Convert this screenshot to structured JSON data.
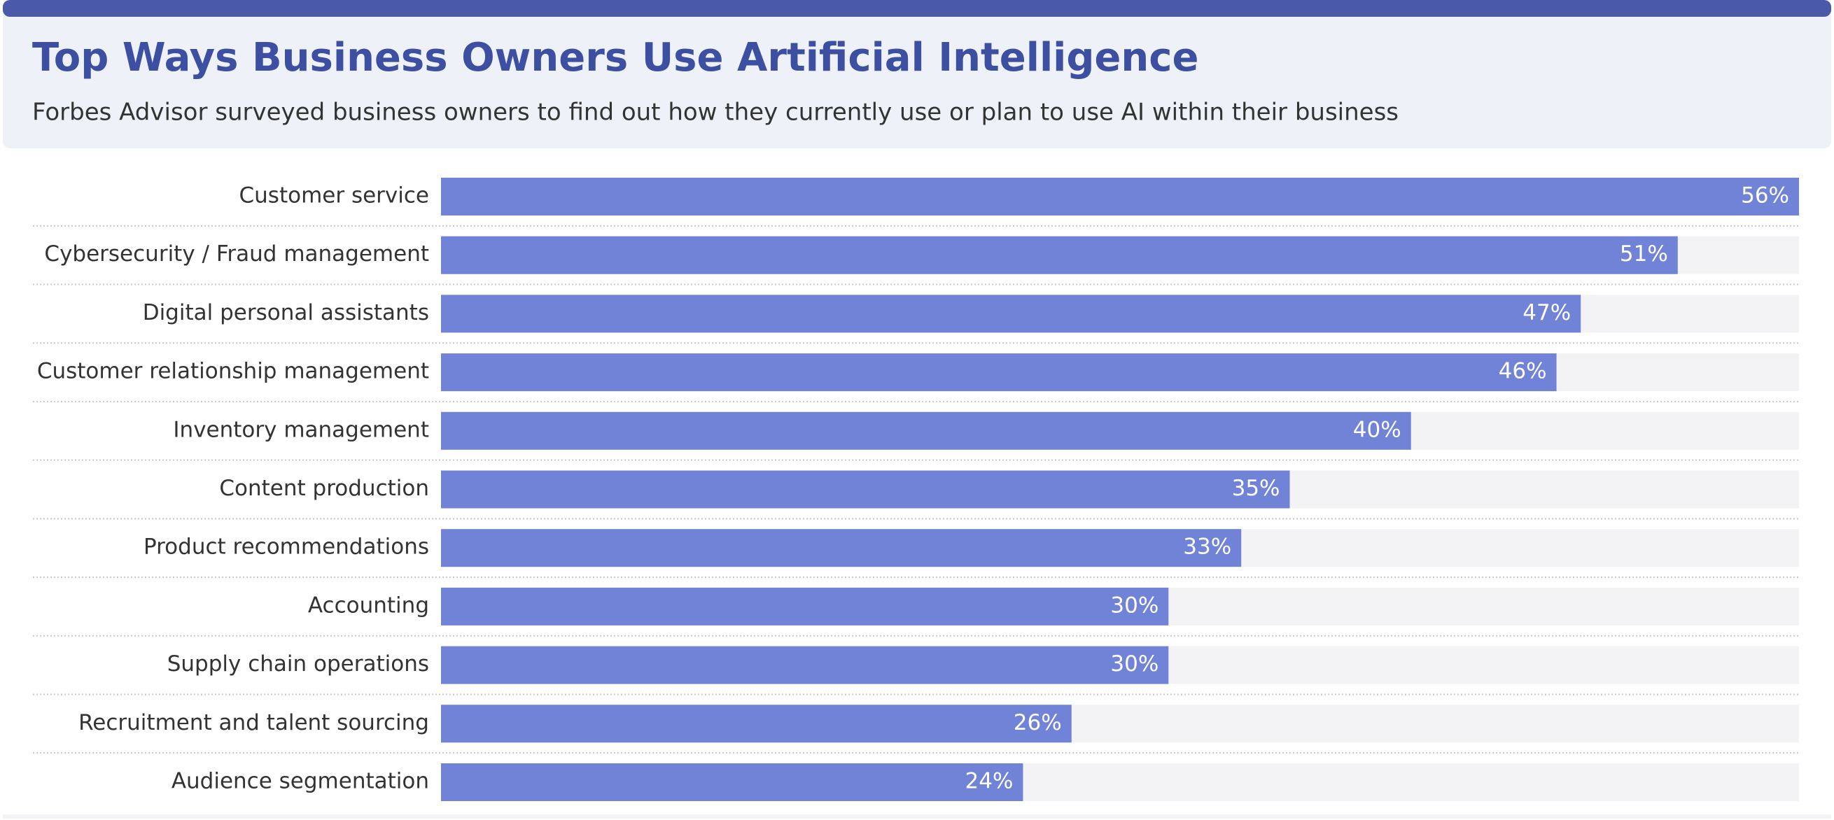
{
  "chart_data": {
    "type": "hbar",
    "title": "Top Ways Business Owners Use Artificial Intelligence",
    "subtitle": "Forbes Advisor surveyed business owners to find out how they currently use or plan to use AI within their business",
    "categories": [
      "Customer service",
      "Cybersecurity / Fraud management",
      "Digital personal assistants",
      "Customer relationship management",
      "Inventory management",
      "Content production",
      "Product recommendations",
      "Accounting",
      "Supply chain operations",
      "Recruitment and talent sourcing",
      "Audience segmentation"
    ],
    "values": [
      56,
      51,
      47,
      46,
      40,
      35,
      33,
      30,
      30,
      26,
      24
    ],
    "value_labels": [
      "56%",
      "51%",
      "47%",
      "46%",
      "40%",
      "35%",
      "33%",
      "30%",
      "30%",
      "26%",
      "24%"
    ],
    "color": "#7083d6"
  }
}
